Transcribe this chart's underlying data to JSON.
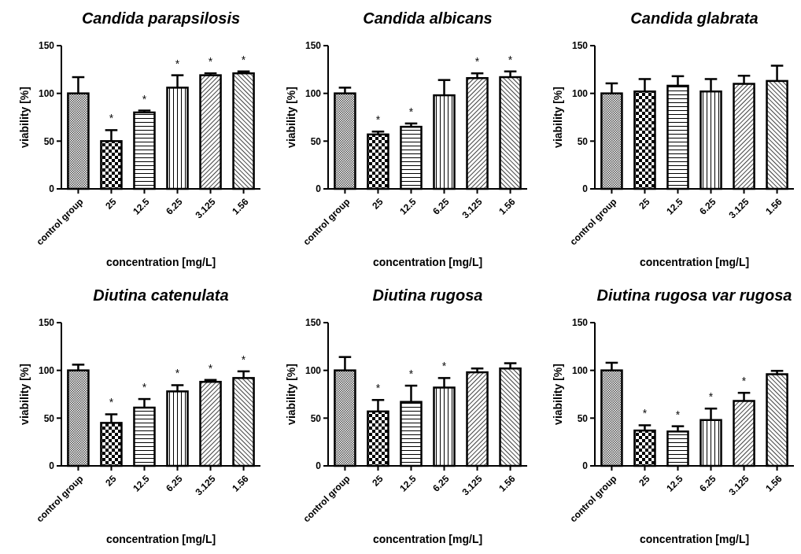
{
  "chart_data": [
    {
      "type": "bar",
      "title": "Candida parapsilosis",
      "xlabel": "concentration [mg/L]",
      "ylabel": "viability [%]",
      "categories": [
        "control group",
        "25",
        "12.5",
        "6.25",
        "3.125",
        "1.56"
      ],
      "values": [
        100,
        50,
        80,
        106,
        119,
        121
      ],
      "errors": [
        17,
        11.5,
        2,
        13,
        2,
        2
      ],
      "color": "#000000",
      "ylim": [
        0,
        150
      ],
      "yticks": [
        0,
        50,
        100,
        150
      ],
      "annotations": [
        {
          "text": "*",
          "x": "25",
          "y": 50
        },
        {
          "text": "*",
          "x": "12.5",
          "y": 80
        },
        {
          "text": "*",
          "x": "6.25",
          "y": 106
        },
        {
          "text": "*",
          "x": "3.125",
          "y": 119
        },
        {
          "text": "*",
          "x": "1.56",
          "y": 121
        }
      ]
    },
    {
      "type": "bar",
      "title": "Candida albicans",
      "xlabel": "concentration [mg/L]",
      "ylabel": "viability [%]",
      "categories": [
        "control group",
        "25",
        "12.5",
        "6.25",
        "3.125",
        "1.56"
      ],
      "values": [
        100,
        57,
        65,
        98,
        116,
        117
      ],
      "errors": [
        6,
        3,
        3.5,
        16,
        5,
        6
      ],
      "color": "#000000",
      "ylim": [
        0,
        150
      ],
      "yticks": [
        0,
        50,
        100,
        150
      ],
      "annotations": [
        {
          "text": "*",
          "x": "25",
          "y": 57
        },
        {
          "text": "*",
          "x": "12.5",
          "y": 65
        },
        {
          "text": "*",
          "x": "3.125",
          "y": 116
        },
        {
          "text": "*",
          "x": "1.56",
          "y": 117
        }
      ]
    },
    {
      "type": "bar",
      "title": "Candida glabrata",
      "xlabel": "concentration [mg/L]",
      "ylabel": "viability [%]",
      "categories": [
        "control group",
        "25",
        "12.5",
        "6.25",
        "3.125",
        "1.56"
      ],
      "values": [
        100,
        102,
        108,
        102,
        110,
        113
      ],
      "errors": [
        10.5,
        13,
        10,
        13,
        8.5,
        16
      ],
      "color": "#000000",
      "ylim": [
        0,
        150
      ],
      "yticks": [
        0,
        50,
        100,
        150
      ]
    },
    {
      "type": "bar",
      "title": "Diutina catenulata",
      "xlabel": "concentration [mg/L]",
      "ylabel": "viability [%]",
      "categories": [
        "control group",
        "25",
        "12.5",
        "6.25",
        "3.125",
        "1.56"
      ],
      "values": [
        100,
        45,
        61,
        78,
        88,
        92
      ],
      "errors": [
        6,
        9,
        9,
        6.5,
        2,
        7
      ],
      "color": "#000000",
      "ylim": [
        0,
        150
      ],
      "yticks": [
        0,
        50,
        100,
        150
      ],
      "annotations": [
        {
          "text": "*",
          "x": "25",
          "y": 45
        },
        {
          "text": "*",
          "x": "12.5",
          "y": 61
        },
        {
          "text": "*",
          "x": "6.25",
          "y": 78
        },
        {
          "text": "*",
          "x": "3.125",
          "y": 88
        },
        {
          "text": "*",
          "x": "1.56",
          "y": 92
        }
      ]
    },
    {
      "type": "bar",
      "title": "Diutina rugosa",
      "xlabel": "concentration [mg/L]",
      "ylabel": "viability [%]",
      "categories": [
        "control group",
        "25",
        "12.5",
        "6.25",
        "3.125",
        "1.56"
      ],
      "values": [
        100,
        57,
        67,
        82,
        98,
        102
      ],
      "errors": [
        14,
        12,
        17,
        10,
        4,
        5.5
      ],
      "color": "#000000",
      "ylim": [
        0,
        150
      ],
      "yticks": [
        0,
        50,
        100,
        150
      ],
      "annotations": [
        {
          "text": "*",
          "x": "25",
          "y": 57
        },
        {
          "text": "*",
          "x": "12.5",
          "y": 67
        },
        {
          "text": "*",
          "x": "6.25",
          "y": 82
        }
      ]
    },
    {
      "type": "bar",
      "title": "Diutina rugosa var rugosa",
      "xlabel": "concentration [mg/L]",
      "ylabel": "viability [%]",
      "categories": [
        "control group",
        "25",
        "12.5",
        "6.25",
        "3.125",
        "1.56"
      ],
      "values": [
        100,
        37,
        36,
        48,
        68,
        96
      ],
      "errors": [
        8,
        5.5,
        5.5,
        12,
        8.5,
        3.5
      ],
      "color": "#000000",
      "ylim": [
        0,
        150
      ],
      "yticks": [
        0,
        50,
        100,
        150
      ],
      "annotations": [
        {
          "text": "*",
          "x": "25",
          "y": 37
        },
        {
          "text": "*",
          "x": "12.5",
          "y": 36
        },
        {
          "text": "*",
          "x": "6.25",
          "y": 48
        },
        {
          "text": "*",
          "x": "3.125",
          "y": 68
        }
      ]
    }
  ]
}
